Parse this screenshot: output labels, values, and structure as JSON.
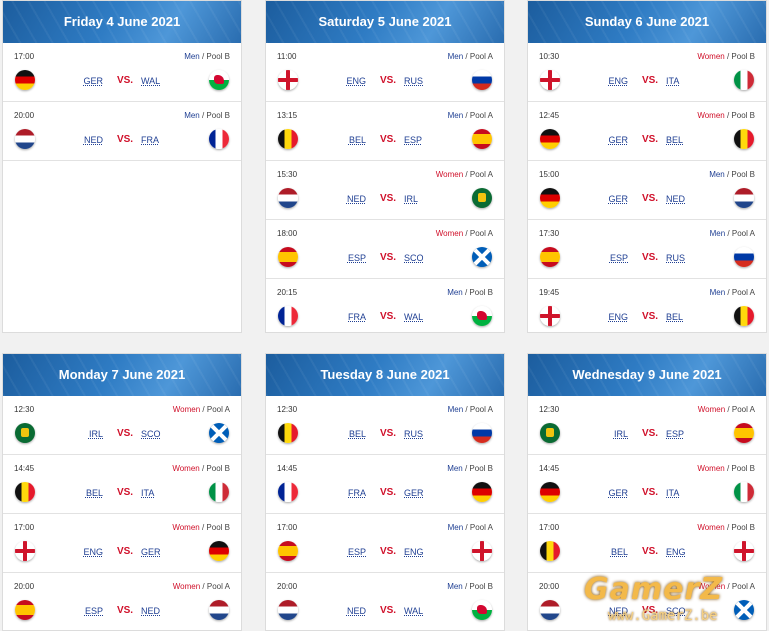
{
  "days": [
    {
      "title": "Friday 4 June 2021",
      "matches": [
        {
          "time": "17:00",
          "gender": "Men",
          "pool": "/ Pool B",
          "home": "GER",
          "away": "WAL",
          "home_flag": "ger",
          "away_flag": "wal"
        },
        {
          "time": "20:00",
          "gender": "Men",
          "pool": "/ Pool B",
          "home": "NED",
          "away": "FRA",
          "home_flag": "ned",
          "away_flag": "fra"
        }
      ]
    },
    {
      "title": "Saturday 5 June 2021",
      "matches": [
        {
          "time": "11:00",
          "gender": "Men",
          "pool": "/ Pool A",
          "home": "ENG",
          "away": "RUS",
          "home_flag": "eng",
          "away_flag": "rus"
        },
        {
          "time": "13:15",
          "gender": "Men",
          "pool": "/ Pool A",
          "home": "BEL",
          "away": "ESP",
          "home_flag": "bel",
          "away_flag": "esp"
        },
        {
          "time": "15:30",
          "gender": "Women",
          "pool": "/ Pool A",
          "home": "NED",
          "away": "IRL",
          "home_flag": "ned",
          "away_flag": "irl"
        },
        {
          "time": "18:00",
          "gender": "Women",
          "pool": "/ Pool A",
          "home": "ESP",
          "away": "SCO",
          "home_flag": "esp",
          "away_flag": "sco"
        },
        {
          "time": "20:15",
          "gender": "Men",
          "pool": "/ Pool B",
          "home": "FRA",
          "away": "WAL",
          "home_flag": "fra",
          "away_flag": "wal"
        }
      ]
    },
    {
      "title": "Sunday 6 June 2021",
      "matches": [
        {
          "time": "10:30",
          "gender": "Women",
          "pool": "/ Pool B",
          "home": "ENG",
          "away": "ITA",
          "home_flag": "eng",
          "away_flag": "ita"
        },
        {
          "time": "12:45",
          "gender": "Women",
          "pool": "/ Pool B",
          "home": "GER",
          "away": "BEL",
          "home_flag": "ger",
          "away_flag": "bel"
        },
        {
          "time": "15:00",
          "gender": "Men",
          "pool": "/ Pool B",
          "home": "GER",
          "away": "NED",
          "home_flag": "ger",
          "away_flag": "ned"
        },
        {
          "time": "17:30",
          "gender": "Men",
          "pool": "/ Pool A",
          "home": "ESP",
          "away": "RUS",
          "home_flag": "esp",
          "away_flag": "rus"
        },
        {
          "time": "19:45",
          "gender": "Men",
          "pool": "/ Pool A",
          "home": "ENG",
          "away": "BEL",
          "home_flag": "eng",
          "away_flag": "bel"
        }
      ]
    },
    {
      "title": "Monday 7 June 2021",
      "matches": [
        {
          "time": "12:30",
          "gender": "Women",
          "pool": "/ Pool A",
          "home": "IRL",
          "away": "SCO",
          "home_flag": "irl",
          "away_flag": "sco"
        },
        {
          "time": "14:45",
          "gender": "Women",
          "pool": "/ Pool B",
          "home": "BEL",
          "away": "ITA",
          "home_flag": "bel",
          "away_flag": "ita"
        },
        {
          "time": "17:00",
          "gender": "Women",
          "pool": "/ Pool B",
          "home": "ENG",
          "away": "GER",
          "home_flag": "eng",
          "away_flag": "ger"
        },
        {
          "time": "20:00",
          "gender": "Women",
          "pool": "/ Pool A",
          "home": "ESP",
          "away": "NED",
          "home_flag": "esp",
          "away_flag": "ned"
        }
      ]
    },
    {
      "title": "Tuesday 8 June 2021",
      "matches": [
        {
          "time": "12:30",
          "gender": "Men",
          "pool": "/ Pool A",
          "home": "BEL",
          "away": "RUS",
          "home_flag": "bel",
          "away_flag": "rus"
        },
        {
          "time": "14:45",
          "gender": "Men",
          "pool": "/ Pool B",
          "home": "FRA",
          "away": "GER",
          "home_flag": "fra",
          "away_flag": "ger"
        },
        {
          "time": "17:00",
          "gender": "Men",
          "pool": "/ Pool A",
          "home": "ESP",
          "away": "ENG",
          "home_flag": "esp",
          "away_flag": "eng"
        },
        {
          "time": "20:00",
          "gender": "Men",
          "pool": "/ Pool B",
          "home": "NED",
          "away": "WAL",
          "home_flag": "ned",
          "away_flag": "wal"
        }
      ]
    },
    {
      "title": "Wednesday 9 June 2021",
      "matches": [
        {
          "time": "12:30",
          "gender": "Women",
          "pool": "/ Pool A",
          "home": "IRL",
          "away": "ESP",
          "home_flag": "irl",
          "away_flag": "esp"
        },
        {
          "time": "14:45",
          "gender": "Women",
          "pool": "/ Pool B",
          "home": "GER",
          "away": "ITA",
          "home_flag": "ger",
          "away_flag": "ita"
        },
        {
          "time": "17:00",
          "gender": "Women",
          "pool": "/ Pool B",
          "home": "BEL",
          "away": "ENG",
          "home_flag": "bel",
          "away_flag": "eng"
        },
        {
          "time": "20:00",
          "gender": "Women",
          "pool": "/ Pool A",
          "home": "NED",
          "away": "SCO",
          "home_flag": "ned",
          "away_flag": "sco"
        }
      ]
    }
  ],
  "vs_label": "VS.",
  "watermark": {
    "brand": "GamerZ",
    "domain": "www.GamerZ.be"
  },
  "colors": {
    "header": "#2a6db0",
    "team": "#1f3f93",
    "vs": "#d0102a",
    "women": "#d0102a",
    "men": "#1f3f93"
  }
}
